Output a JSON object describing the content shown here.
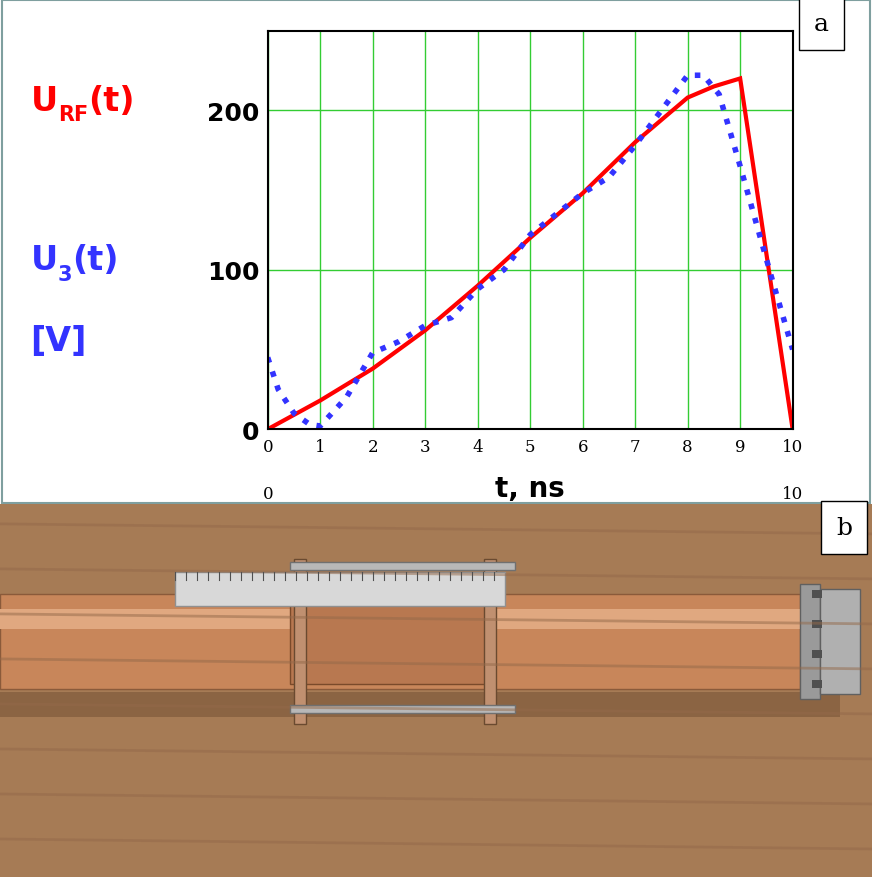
{
  "chart_data": {
    "type": "line",
    "panel_label": "a",
    "y_labels": [
      {
        "text": "U",
        "sub": "RF",
        "after": "(t)",
        "color": "#ff0000"
      },
      {
        "text": "U",
        "sub": "3",
        "after": "(t)",
        "color": "#3333ff"
      },
      {
        "text": "[V]",
        "color": "#3333ff"
      }
    ],
    "xlabel": "t, ns",
    "annotations": [
      {
        "x": 0,
        "text": "0"
      },
      {
        "x": 10,
        "text": "10"
      }
    ],
    "series": [
      {
        "type": "line",
        "color": "#ff0000",
        "line_style": "solid",
        "x": [
          0,
          1,
          2,
          3,
          4,
          5,
          6,
          7,
          8,
          8.5,
          9,
          10
        ],
        "values": [
          0,
          18,
          38,
          62,
          90,
          120,
          148,
          180,
          208,
          215,
          220,
          0
        ]
      },
      {
        "type": "line",
        "color": "#3333ff",
        "line_style": "dotted",
        "x": [
          0,
          0.2,
          0.5,
          0.8,
          1,
          1.5,
          2,
          2.5,
          3,
          3.5,
          4,
          4.5,
          5,
          5.5,
          6,
          6.5,
          7,
          7.5,
          8,
          8.3,
          8.6,
          9,
          9.3,
          9.6,
          10
        ],
        "values": [
          45,
          25,
          10,
          3,
          2,
          20,
          48,
          55,
          65,
          70,
          88,
          100,
          122,
          135,
          148,
          158,
          178,
          200,
          222,
          222,
          210,
          165,
          130,
          95,
          50
        ]
      }
    ],
    "xlim": [
      0,
      10
    ],
    "ylim": [
      0,
      250
    ],
    "xticks": [
      0,
      1,
      2,
      3,
      4,
      5,
      6,
      7,
      8,
      9,
      10
    ],
    "yticks": [
      0,
      100,
      200
    ],
    "grid": true
  },
  "photo": {
    "panel_label": "b"
  }
}
